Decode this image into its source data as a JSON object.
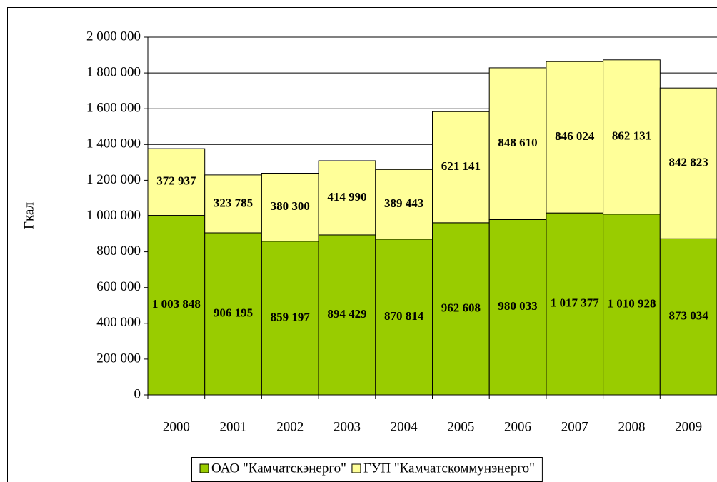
{
  "chart_data": {
    "type": "stacked_bar",
    "y_label": "Гкал",
    "categories": [
      "2000",
      "2001",
      "2002",
      "2003",
      "2004",
      "2005",
      "2006",
      "2007",
      "2008",
      "2009"
    ],
    "series": [
      {
        "name": "ОАО \"Камчатскэнерго\"",
        "color": "#99cc00",
        "values": [
          1003848,
          906195,
          859197,
          894429,
          870814,
          962608,
          980033,
          1017377,
          1010928,
          873034
        ],
        "value_labels": [
          "1 003 848",
          "906 195",
          "859 197",
          "894 429",
          "870 814",
          "962 608",
          "980 033",
          "1 017 377",
          "1 010 928",
          "873 034"
        ]
      },
      {
        "name": "ГУП \"Камчатскоммунэнерго\"",
        "color": "#ffff99",
        "values": [
          372937,
          323785,
          380300,
          414990,
          389443,
          621141,
          848610,
          846024,
          862131,
          842823
        ],
        "value_labels": [
          "372 937",
          "323 785",
          "380 300",
          "414 990",
          "389 443",
          "621 141",
          "848 610",
          "846 024",
          "862 131",
          "842 823"
        ]
      }
    ],
    "ylim": [
      0,
      2000000
    ],
    "yticks": [
      0,
      {
        "value": 200000,
        "label": "200 000"
      },
      {
        "value": 400000,
        "label": "400 000"
      },
      {
        "value": 600000,
        "label": "600 000"
      },
      {
        "value": 800000,
        "label": "800 000"
      },
      {
        "value": 1000000,
        "label": "1 000 000"
      },
      {
        "value": 1200000,
        "label": "1 200 000"
      },
      {
        "value": 1400000,
        "label": "1 400 000"
      },
      {
        "value": 1600000,
        "label": "1 600 000"
      },
      {
        "value": 1800000,
        "label": "1 800 000"
      },
      {
        "value": 2000000,
        "label": "2 000 000"
      }
    ],
    "grid": true,
    "legend": "bottom"
  }
}
